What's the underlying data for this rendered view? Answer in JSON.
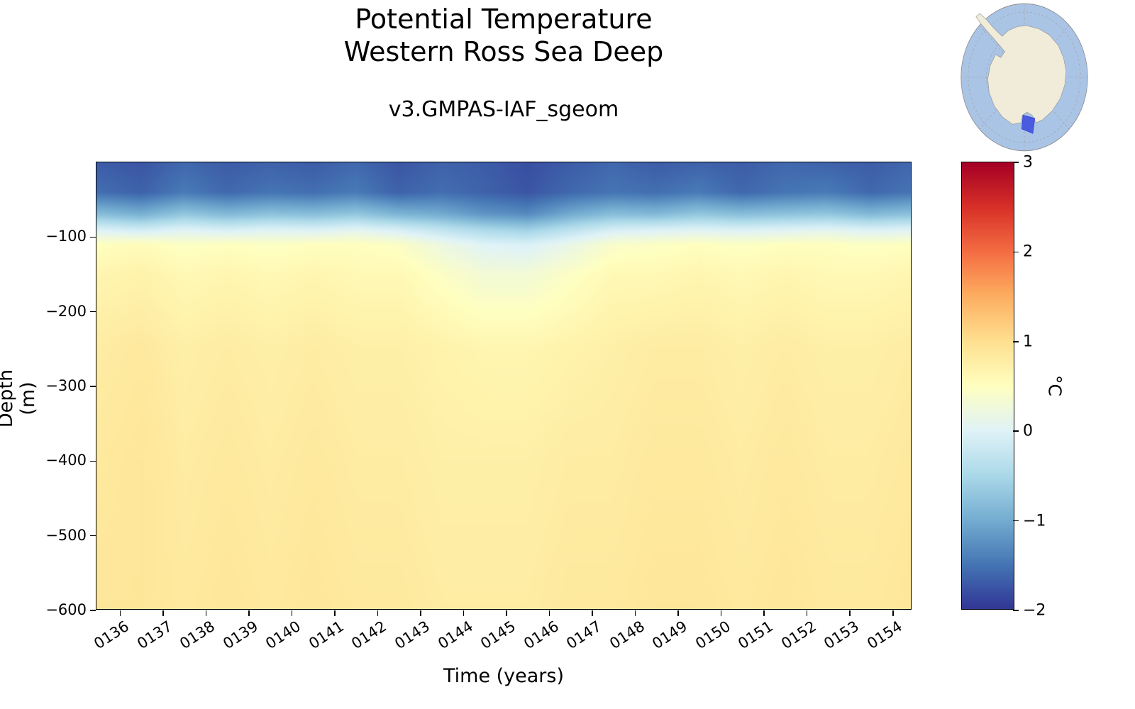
{
  "figure": {
    "title_line1": "Potential Temperature",
    "title_line2": "Western Ross Sea Deep",
    "subtitle": "v3.GMPAS-IAF_sgeom"
  },
  "axes": {
    "xlabel": "Time (years)",
    "ylabel": "Depth (m)",
    "x_tick_labels": [
      "0136",
      "0137",
      "0138",
      "0139",
      "0140",
      "0141",
      "0142",
      "0143",
      "0144",
      "0145",
      "0146",
      "0147",
      "0148",
      "0149",
      "0150",
      "0151",
      "0152",
      "0153",
      "0154"
    ],
    "x_tick_values": [
      136,
      137,
      138,
      139,
      140,
      141,
      142,
      143,
      144,
      145,
      146,
      147,
      148,
      149,
      150,
      151,
      152,
      153,
      154
    ],
    "y_tick_labels": [
      "−100",
      "−200",
      "−300",
      "−400",
      "−500",
      "−600"
    ],
    "y_tick_values": [
      -100,
      -200,
      -300,
      -400,
      -500,
      -600
    ]
  },
  "colorbar": {
    "label": "°C",
    "tick_labels": [
      "3",
      "2",
      "1",
      "0",
      "−1",
      "−2"
    ],
    "tick_values": [
      3,
      2,
      1,
      0,
      -1,
      -2
    ],
    "vmin": -2,
    "vmax": 3,
    "colors": [
      "#313695",
      "#4575b4",
      "#74add1",
      "#abd9e9",
      "#e0f3f8",
      "#ffffbf",
      "#fee090",
      "#fdae61",
      "#f46d43",
      "#d73027",
      "#a50026"
    ]
  },
  "inset_map": {
    "ocean_color": "#aac4e6",
    "land_color": "#f0ecd9",
    "highlight_color": "#4050e0"
  },
  "chart_data": {
    "type": "heatmap",
    "title": "Potential Temperature — Western Ross Sea Deep",
    "subtitle": "v3.GMPAS-IAF_sgeom",
    "xlabel": "Time (years)",
    "ylabel": "Depth (m)",
    "units": "°C",
    "vmin": -2,
    "vmax": 3,
    "xlim": [
      135.45,
      154.45
    ],
    "ylim": [
      -600,
      0
    ],
    "x_years": [
      135.5,
      136.5,
      137.5,
      138.5,
      139.5,
      140.5,
      141.5,
      142.5,
      143.5,
      144.5,
      145.5,
      146.5,
      147.5,
      148.5,
      149.5,
      150.5,
      151.5,
      152.5,
      153.5,
      154.5
    ],
    "y_depths": [
      0,
      -40,
      -70,
      -90,
      -110,
      -150,
      -250,
      -400,
      -600
    ],
    "values": [
      [
        -1.7,
        -1.75,
        -1.6,
        -1.7,
        -1.65,
        -1.7,
        -1.6,
        -1.75,
        -1.65,
        -1.7,
        -1.8,
        -1.7,
        -1.6,
        -1.7,
        -1.65,
        -1.7,
        -1.6,
        -1.65,
        -1.7,
        -1.6
      ],
      [
        -1.55,
        -1.65,
        -1.45,
        -1.6,
        -1.5,
        -1.55,
        -1.45,
        -1.65,
        -1.55,
        -1.65,
        -1.75,
        -1.6,
        -1.5,
        -1.55,
        -1.45,
        -1.6,
        -1.5,
        -1.45,
        -1.6,
        -1.5
      ],
      [
        -0.8,
        -0.95,
        -0.7,
        -0.85,
        -0.75,
        -0.8,
        -0.7,
        -0.9,
        -1.0,
        -1.2,
        -1.3,
        -1.0,
        -0.8,
        -0.85,
        -0.7,
        -0.8,
        -0.75,
        -0.7,
        -0.85,
        -0.75
      ],
      [
        -0.05,
        -0.15,
        0.0,
        -0.1,
        0.0,
        -0.05,
        0.05,
        -0.1,
        -0.3,
        -0.5,
        -0.6,
        -0.35,
        -0.1,
        -0.05,
        0.0,
        -0.05,
        0.0,
        0.05,
        -0.05,
        0.0
      ],
      [
        0.5,
        0.55,
        0.45,
        0.5,
        0.45,
        0.5,
        0.5,
        0.45,
        0.2,
        0.0,
        -0.05,
        0.15,
        0.4,
        0.45,
        0.5,
        0.45,
        0.5,
        0.5,
        0.45,
        0.5
      ],
      [
        0.65,
        0.7,
        0.6,
        0.65,
        0.6,
        0.65,
        0.6,
        0.6,
        0.45,
        0.3,
        0.3,
        0.45,
        0.6,
        0.6,
        0.65,
        0.6,
        0.65,
        0.6,
        0.6,
        0.65
      ],
      [
        0.8,
        0.85,
        0.75,
        0.8,
        0.75,
        0.8,
        0.75,
        0.75,
        0.7,
        0.65,
        0.65,
        0.7,
        0.75,
        0.8,
        0.8,
        0.75,
        0.8,
        0.75,
        0.75,
        0.8
      ],
      [
        0.85,
        0.9,
        0.8,
        0.85,
        0.8,
        0.85,
        0.8,
        0.8,
        0.75,
        0.75,
        0.75,
        0.8,
        0.8,
        0.85,
        0.85,
        0.8,
        0.85,
        0.8,
        0.8,
        0.85
      ],
      [
        0.9,
        0.9,
        0.85,
        0.9,
        0.85,
        0.9,
        0.85,
        0.85,
        0.8,
        0.8,
        0.8,
        0.85,
        0.85,
        0.9,
        0.9,
        0.85,
        0.9,
        0.85,
        0.85,
        0.9
      ]
    ]
  }
}
